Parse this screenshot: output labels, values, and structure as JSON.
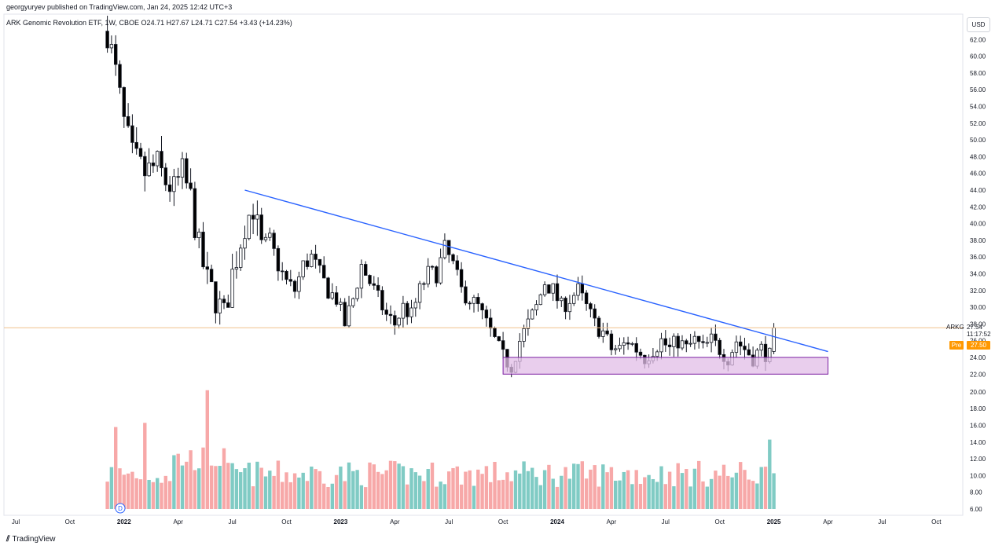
{
  "header": {
    "published": "georgyuryev published on TradingView.com, Jan 24, 2025 12:42 UTC+3",
    "legend": "ARK Genomic Revolution ETF, 1W, CBOE  O24.71  H27.67  L24.71  C27.54  +3.43 (+14.23%)"
  },
  "footer": {
    "logo_mark": "⫽",
    "logo_text": "TradingView"
  },
  "currency_button": "USD",
  "last_price": {
    "symbol": "ARKG",
    "price": "27.54",
    "countdown": "11:17:52"
  },
  "premarket": {
    "label": "Pre",
    "price": "27.50"
  },
  "event_marker": "D",
  "colors": {
    "up_candle": "#ffffff",
    "down_candle": "#000000",
    "wick": "#131722",
    "trendline": "#2962ff",
    "zone_fill": "#e1bee7",
    "zone_border": "#7b1fa2",
    "volume_up": "#80cbc4",
    "volume_down": "#f7a8a8",
    "price_line": "#f0c08a"
  },
  "chart_data": {
    "type": "candlestick",
    "title": "ARK Genomic Revolution ETF, 1W, CBOE",
    "y_ticks": [
      "62.00",
      "60.00",
      "58.00",
      "56.00",
      "54.00",
      "52.00",
      "50.00",
      "48.00",
      "46.00",
      "44.00",
      "42.00",
      "40.00",
      "38.00",
      "36.00",
      "34.00",
      "32.00",
      "30.00",
      "28.00",
      "26.00",
      "24.00",
      "22.00",
      "20.00",
      "18.00",
      "16.00",
      "14.00",
      "12.00",
      "10.00",
      "8.00",
      "6.00"
    ],
    "x_ticks": [
      {
        "label": "Jul",
        "week": 0
      },
      {
        "label": "Oct",
        "week": 13
      },
      {
        "label": "2022",
        "week": 26
      },
      {
        "label": "Apr",
        "week": 39
      },
      {
        "label": "Jul",
        "week": 52
      },
      {
        "label": "Oct",
        "week": 65
      },
      {
        "label": "2023",
        "week": 78
      },
      {
        "label": "Apr",
        "week": 91
      },
      {
        "label": "Jul",
        "week": 104
      },
      {
        "label": "Oct",
        "week": 117
      },
      {
        "label": "2024",
        "week": 130
      },
      {
        "label": "Apr",
        "week": 143
      },
      {
        "label": "Jul",
        "week": 156
      },
      {
        "label": "Oct",
        "week": 169
      },
      {
        "label": "2025",
        "week": 182
      },
      {
        "label": "Apr",
        "week": 195
      },
      {
        "label": "Jul",
        "week": 208
      },
      {
        "label": "Oct",
        "week": 221
      }
    ],
    "price_key_points": [
      [
        0,
        null
      ],
      [
        22,
        63
      ],
      [
        24,
        58
      ],
      [
        26,
        52
      ],
      [
        28,
        48
      ],
      [
        31,
        46
      ],
      [
        34,
        47
      ],
      [
        36,
        45
      ],
      [
        38,
        44
      ],
      [
        40,
        46
      ],
      [
        42,
        43
      ],
      [
        44,
        37
      ],
      [
        46,
        33
      ],
      [
        48,
        31
      ],
      [
        50,
        29
      ],
      [
        52,
        34
      ],
      [
        55,
        40
      ],
      [
        57,
        42
      ],
      [
        59,
        37
      ],
      [
        61,
        38
      ],
      [
        63,
        35
      ],
      [
        65,
        33
      ],
      [
        67,
        32
      ],
      [
        69,
        35
      ],
      [
        71,
        36
      ],
      [
        73,
        34
      ],
      [
        75,
        32
      ],
      [
        77,
        31
      ],
      [
        79,
        28
      ],
      [
        81,
        31
      ],
      [
        83,
        35
      ],
      [
        85,
        33
      ],
      [
        87,
        31
      ],
      [
        89,
        29
      ],
      [
        91,
        28
      ],
      [
        93,
        30
      ],
      [
        95,
        29
      ],
      [
        97,
        32
      ],
      [
        99,
        34
      ],
      [
        101,
        34
      ],
      [
        103,
        37
      ],
      [
        105,
        35
      ],
      [
        107,
        32
      ],
      [
        109,
        31
      ],
      [
        111,
        30
      ],
      [
        113,
        28
      ],
      [
        115,
        26
      ],
      [
        117,
        24
      ],
      [
        119,
        23
      ],
      [
        121,
        26
      ],
      [
        123,
        28
      ],
      [
        125,
        30
      ],
      [
        127,
        33
      ],
      [
        129,
        32
      ],
      [
        131,
        30
      ],
      [
        133,
        31
      ],
      [
        135,
        32
      ],
      [
        137,
        30
      ],
      [
        139,
        28
      ],
      [
        141,
        27
      ],
      [
        143,
        25
      ],
      [
        145,
        25
      ],
      [
        147,
        26
      ],
      [
        149,
        25
      ],
      [
        151,
        24
      ],
      [
        153,
        25
      ],
      [
        155,
        26
      ],
      [
        157,
        25
      ],
      [
        159,
        26
      ],
      [
        161,
        25
      ],
      [
        163,
        26
      ],
      [
        165,
        25
      ],
      [
        167,
        26
      ],
      [
        169,
        25
      ],
      [
        171,
        24
      ],
      [
        173,
        26
      ],
      [
        175,
        25
      ],
      [
        177,
        24
      ],
      [
        179,
        25
      ],
      [
        181,
        24.1
      ],
      [
        182,
        27.54
      ]
    ],
    "trendline": {
      "from": {
        "week": 55,
        "price": 44.0
      },
      "to": {
        "week": 195,
        "price": 24.7
      }
    },
    "support_zone": {
      "from_week": 117,
      "to_week": 195,
      "low": 22.0,
      "high": 24.0
    },
    "last_close": 27.54,
    "volume_axis_ticks": [
      "20.00",
      "18.00",
      "16.00",
      "14.00",
      "12.00",
      "10.00",
      "8.00",
      "6.00"
    ]
  }
}
